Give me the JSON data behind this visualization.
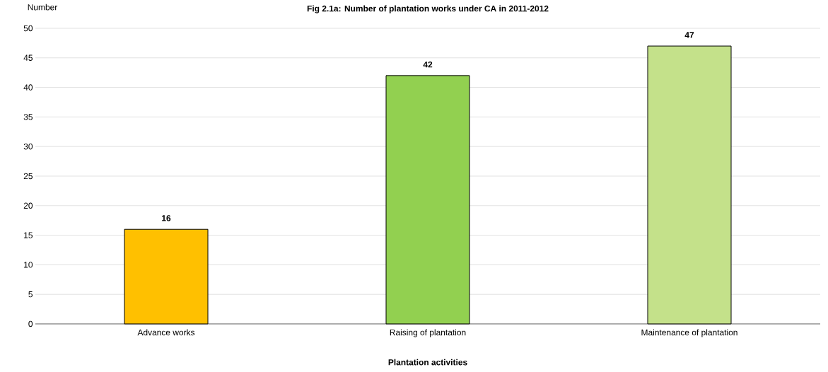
{
  "chart_data": {
    "type": "bar",
    "title": "Fig 2.1a: Number of plantation works under CA in 2011-2012",
    "xlabel": "Plantation activities",
    "ylabel": "Number",
    "categories": [
      "Advance works",
      "Raising of plantation",
      "Maintenance of plantation"
    ],
    "values": [
      16,
      42,
      47
    ],
    "colors": [
      "#ffc000",
      "#92d050",
      "#c4e18a"
    ],
    "ylim": [
      0,
      50
    ],
    "yticks": [
      0,
      5,
      10,
      15,
      20,
      25,
      30,
      35,
      40,
      45,
      50
    ],
    "grid": "y",
    "data_labels": true
  }
}
